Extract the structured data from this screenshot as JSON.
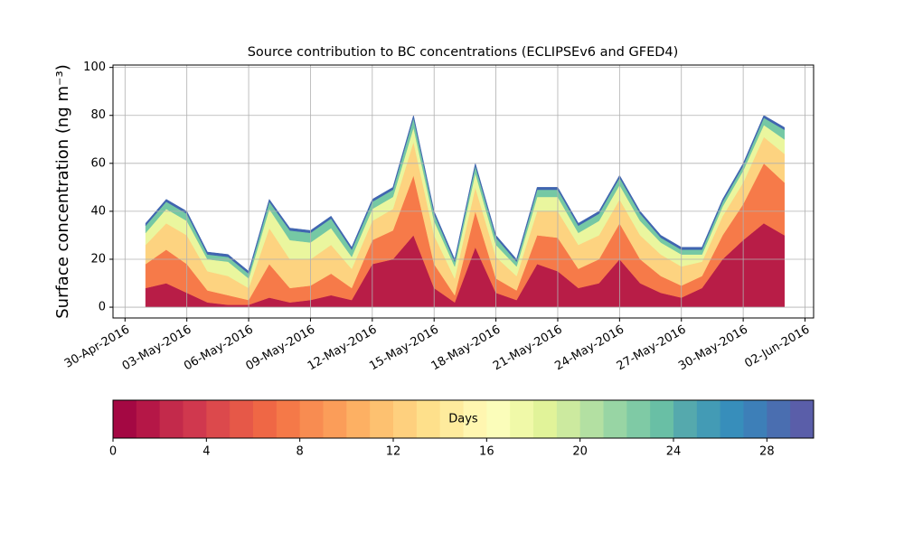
{
  "chart_data": {
    "type": "stacked_area",
    "title": "Source contribution to BC concentrations (ECLIPSEv6 and GFED4)",
    "y_label": "Surface concentration (ng m⁻³)",
    "x": [
      "2016-05-01",
      "2016-05-02",
      "2016-05-03",
      "2016-05-04",
      "2016-05-05",
      "2016-05-06",
      "2016-05-07",
      "2016-05-08",
      "2016-05-09",
      "2016-05-10",
      "2016-05-11",
      "2016-05-12",
      "2016-05-13",
      "2016-05-14",
      "2016-05-15",
      "2016-05-16",
      "2016-05-17",
      "2016-05-18",
      "2016-05-19",
      "2016-05-20",
      "2016-05-21",
      "2016-05-22",
      "2016-05-23",
      "2016-05-24",
      "2016-05-25",
      "2016-05-26",
      "2016-05-27",
      "2016-05-28",
      "2016-05-29",
      "2016-05-30",
      "2016-05-31",
      "2016-06-01"
    ],
    "series": [
      {
        "color": "#b81d47",
        "values": [
          8,
          10,
          6,
          2,
          1,
          1,
          4,
          2,
          3,
          5,
          3,
          18,
          20,
          30,
          8,
          2,
          25,
          6,
          3,
          18,
          15,
          8,
          10,
          20,
          10,
          6,
          4,
          8,
          20,
          28,
          35,
          30
        ]
      },
      {
        "color": "#f67a49",
        "values": [
          10,
          14,
          12,
          5,
          4,
          2,
          14,
          6,
          6,
          9,
          5,
          10,
          12,
          25,
          10,
          3,
          15,
          6,
          4,
          12,
          14,
          8,
          10,
          15,
          10,
          7,
          5,
          5,
          10,
          15,
          25,
          22
        ]
      },
      {
        "color": "#fdd380",
        "values": [
          8,
          11,
          12,
          8,
          8,
          5,
          15,
          12,
          11,
          12,
          8,
          8,
          9,
          14,
          12,
          7,
          10,
          9,
          6,
          10,
          11,
          10,
          10,
          10,
          10,
          9,
          8,
          6,
          8,
          9,
          11,
          12
        ]
      },
      {
        "color": "#eaf69e",
        "values": [
          5,
          6,
          6,
          5,
          6,
          4,
          8,
          8,
          7,
          7,
          5,
          5,
          5,
          6,
          6,
          5,
          6,
          5,
          4,
          6,
          6,
          5,
          6,
          6,
          6,
          5,
          5,
          3,
          4,
          5,
          5,
          6
        ]
      },
      {
        "color": "#75c8a4",
        "values": [
          3,
          3,
          3,
          2,
          2,
          2,
          3,
          4,
          4,
          4,
          3,
          3,
          3,
          4,
          3,
          2,
          3,
          3,
          2,
          3,
          3,
          3,
          3,
          3,
          3,
          2,
          2,
          2,
          2,
          2,
          3,
          4
        ]
      },
      {
        "color": "#4065b0",
        "values": [
          1,
          1,
          1,
          1,
          1,
          1,
          1,
          1,
          1,
          1,
          1,
          1,
          1,
          1,
          1,
          1,
          1,
          1,
          1,
          1,
          1,
          1,
          1,
          1,
          1,
          1,
          1,
          1,
          1,
          1,
          1,
          1
        ]
      }
    ],
    "xlim": [
      "2016-04-29T10:00",
      "2016-06-02T10:00"
    ],
    "xticks": [
      {
        "value": "2016-04-30",
        "label": "30-Apr-2016"
      },
      {
        "value": "2016-05-03",
        "label": "03-May-2016"
      },
      {
        "value": "2016-05-06",
        "label": "06-May-2016"
      },
      {
        "value": "2016-05-09",
        "label": "09-May-2016"
      },
      {
        "value": "2016-05-12",
        "label": "12-May-2016"
      },
      {
        "value": "2016-05-15",
        "label": "15-May-2016"
      },
      {
        "value": "2016-05-18",
        "label": "18-May-2016"
      },
      {
        "value": "2016-05-21",
        "label": "21-May-2016"
      },
      {
        "value": "2016-05-24",
        "label": "24-May-2016"
      },
      {
        "value": "2016-05-27",
        "label": "27-May-2016"
      },
      {
        "value": "2016-05-30",
        "label": "30-May-2016"
      },
      {
        "value": "2016-06-02",
        "label": "02-Jun-2016"
      }
    ],
    "ylim": [
      -4.5,
      101
    ],
    "yticks": [
      0,
      20,
      40,
      60,
      80,
      100
    ],
    "grid": true,
    "colorbar": {
      "label": "Days",
      "lim": [
        0,
        30
      ],
      "ticks": [
        0,
        4,
        8,
        12,
        16,
        20,
        24,
        28
      ],
      "colors": [
        "#a40843",
        "#b51747",
        "#c32a4b",
        "#d0384e",
        "#dc494c",
        "#e65848",
        "#ef6745",
        "#f57948",
        "#f88c51",
        "#fb9d59",
        "#fdb063",
        "#fdc170",
        "#fed07e",
        "#fee08b",
        "#feeb9d",
        "#fff6b0",
        "#fbfdba",
        "#f0f9a8",
        "#e1f399",
        "#ccea9f",
        "#b3e0a2",
        "#98d5a4",
        "#7fcaa5",
        "#69bfa5",
        "#55a9ad",
        "#439bb5",
        "#378ebb",
        "#3d7fb8",
        "#4a6eb0",
        "#5a5ea9"
      ]
    }
  }
}
